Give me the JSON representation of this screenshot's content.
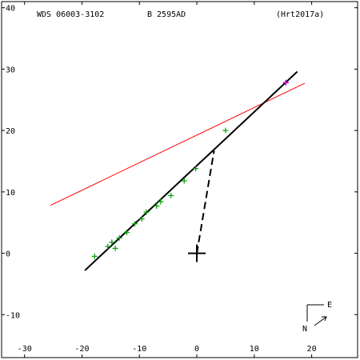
{
  "header": {
    "object": "WDS 06003-3102",
    "component": "B  2595AD",
    "reference": "(Hrt2017a)"
  },
  "compass": {
    "east_label": "E",
    "north_label": "N"
  },
  "colors": {
    "frame": "#000000",
    "observations": "#00a000",
    "latest_point": "#cc00cc",
    "orbit_fit": "#000000",
    "other_line": "#ff0000"
  },
  "chart_data": {
    "type": "scatter",
    "title": "",
    "xlabel": "",
    "ylabel": "",
    "xlim": [
      -34,
      28
    ],
    "ylim": [
      -17,
      41
    ],
    "x_ticks": [
      -30,
      -20,
      -10,
      0,
      10,
      20
    ],
    "y_ticks": [
      -10,
      0,
      10,
      20,
      30,
      40
    ],
    "grid": false,
    "primary_marker": {
      "x": 0,
      "y": 0,
      "symbol": "+"
    },
    "observations": [
      {
        "x": -17.8,
        "y": -0.5
      },
      {
        "x": -15.5,
        "y": 1.1
      },
      {
        "x": -14.8,
        "y": 1.8
      },
      {
        "x": -14.2,
        "y": 0.8
      },
      {
        "x": -13.5,
        "y": 2.5
      },
      {
        "x": -12.2,
        "y": 3.4
      },
      {
        "x": -10.8,
        "y": 4.8
      },
      {
        "x": -9.6,
        "y": 5.6
      },
      {
        "x": -8.8,
        "y": 6.7
      },
      {
        "x": -7.0,
        "y": 7.7
      },
      {
        "x": -6.3,
        "y": 8.4
      },
      {
        "x": -4.5,
        "y": 9.4
      },
      {
        "x": -2.2,
        "y": 11.8
      },
      {
        "x": -0.2,
        "y": 13.8
      },
      {
        "x": 5.0,
        "y": 20.0
      }
    ],
    "latest_observation": {
      "x": 15.5,
      "y": 27.8
    },
    "orbit_fit_line": {
      "x": [
        -19.5,
        17.5
      ],
      "y": [
        -2.8,
        29.6
      ]
    },
    "other_line": {
      "x": [
        -25.5,
        18.8
      ],
      "y": [
        7.8,
        27.7
      ]
    },
    "connector": {
      "x": [
        0,
        3.0
      ],
      "y": [
        0,
        16.7
      ],
      "style": "dashed"
    }
  }
}
